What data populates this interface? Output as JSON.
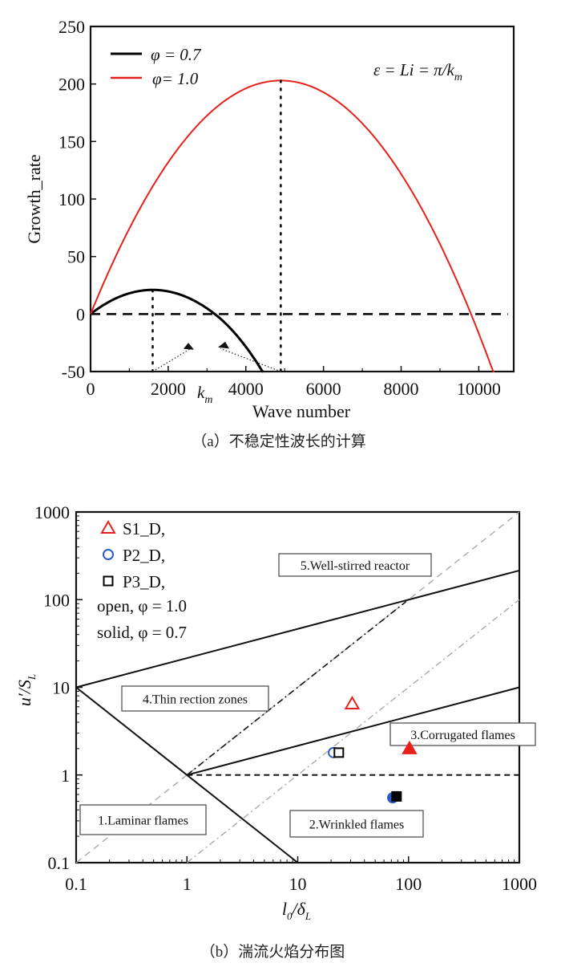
{
  "chart_data": [
    {
      "type": "line",
      "caption": "（a）不稳定性波长的计算",
      "xlabel": "Wave number",
      "ylabel": "Growth_rate",
      "xlim": [
        0,
        10900
      ],
      "ylim": [
        -50,
        250
      ],
      "xticks": [
        "0",
        "2000",
        "4000",
        "6000",
        "8000",
        "10000"
      ],
      "yticks": [
        "-50",
        "0",
        "50",
        "100",
        "150",
        "200",
        "250"
      ],
      "annotation": "ε = Li = π/k",
      "annotation_sub": "m",
      "km_label": "k",
      "km_sub": "m",
      "reference_line_y": 0,
      "series": [
        {
          "name": "φ = 0.7",
          "color": "#000000",
          "peak": [
            1600,
            21
          ],
          "zero": 3200,
          "x": [
            0,
            400,
            800,
            1200,
            1600,
            2000,
            2400,
            2800,
            3200,
            3600,
            4000,
            4450
          ],
          "y": [
            0,
            9.2,
            15.8,
            19.7,
            21,
            19.7,
            15.8,
            9.2,
            0,
            -12,
            -26,
            -50
          ]
        },
        {
          "name": "φ= 1.0",
          "color": "#e8201c",
          "peak": [
            4900,
            203
          ],
          "zero": 9800,
          "x": [
            0,
            1000,
            2000,
            3000,
            4000,
            4900,
            6000,
            7000,
            8000,
            9000,
            9800,
            10400
          ],
          "y": [
            0,
            74.4,
            136.5,
            183.2,
            198.4,
            203,
            196.3,
            166.2,
            124.6,
            61.4,
            0,
            -52
          ]
        }
      ]
    },
    {
      "type": "scatter",
      "scale": "log-log",
      "caption": "（b）湍流火焰分布图",
      "xlabel": "l",
      "xlabel_sub": "0",
      "xlabel_den": "/δ",
      "xlabel_den_sub": "L",
      "ylabel": "u′/S",
      "ylabel_sub": "L",
      "xlim": [
        0.1,
        1000
      ],
      "ylim": [
        0.1,
        1000
      ],
      "xticks": [
        "0.1",
        "1",
        "10",
        "100",
        "1000"
      ],
      "yticks": [
        "0.1",
        "1",
        "10",
        "100",
        "1000"
      ],
      "legend": {
        "entries": [
          {
            "label": "S1_D,",
            "marker": "triangle",
            "color": "#e8201c"
          },
          {
            "label": "P2_D,",
            "marker": "circle",
            "color": "#2a5cc8"
          },
          {
            "label": "P3_D,",
            "marker": "square",
            "color": "#000000"
          }
        ],
        "notes": [
          "open, φ = 1.0",
          "solid, φ = 0.7"
        ],
        "placement": "top-left"
      },
      "regions": [
        "5.Well-stirred reactor",
        "4.Thin rection zones",
        "3.Corrugated flames",
        "1.Laminar flames",
        "2.Wrinkled flames"
      ],
      "boundaries": [
        {
          "name": "upper-boundary",
          "style": "solid",
          "points": [
            [
              0.1,
              10
            ],
            [
              1000,
              215
            ]
          ]
        },
        {
          "name": "corrugated-boundary",
          "style": "solid",
          "points": [
            [
              1,
              1
            ],
            [
              1000,
              10
            ]
          ]
        },
        {
          "name": "laminar-boundary",
          "style": "solid",
          "points": [
            [
              0.1,
              10
            ],
            [
              10,
              0.1
            ]
          ]
        },
        {
          "name": "unity-line",
          "style": "dashed",
          "points": [
            [
              1,
              1
            ],
            [
              1000,
              1
            ]
          ]
        },
        {
          "name": "ka-one-line",
          "style": "dashdot",
          "points": [
            [
              1,
              1
            ],
            [
              95,
              95
            ]
          ]
        },
        {
          "name": "gray-diagonal-1",
          "style": "gray-dash",
          "points": [
            [
              0.1,
              0.1
            ],
            [
              1000,
              1000
            ]
          ]
        },
        {
          "name": "gray-diagonal-2",
          "style": "gray-dashdot",
          "points": [
            [
              1,
              0.1
            ],
            [
              1000,
              100
            ]
          ]
        }
      ],
      "points": [
        {
          "series": "S1_D",
          "phi": 1.0,
          "x": 31,
          "y": 6.5,
          "filled": false
        },
        {
          "series": "S1_D",
          "phi": 0.7,
          "x": 102,
          "y": 2.0,
          "filled": true
        },
        {
          "series": "P2_D",
          "phi": 1.0,
          "x": 21,
          "y": 1.8,
          "filled": false
        },
        {
          "series": "P3_D",
          "phi": 1.0,
          "x": 23.5,
          "y": 1.8,
          "filled": false
        },
        {
          "series": "P2_D",
          "phi": 0.7,
          "x": 72,
          "y": 0.55,
          "filled": true
        },
        {
          "series": "P3_D",
          "phi": 0.7,
          "x": 78,
          "y": 0.57,
          "filled": true
        }
      ]
    }
  ]
}
